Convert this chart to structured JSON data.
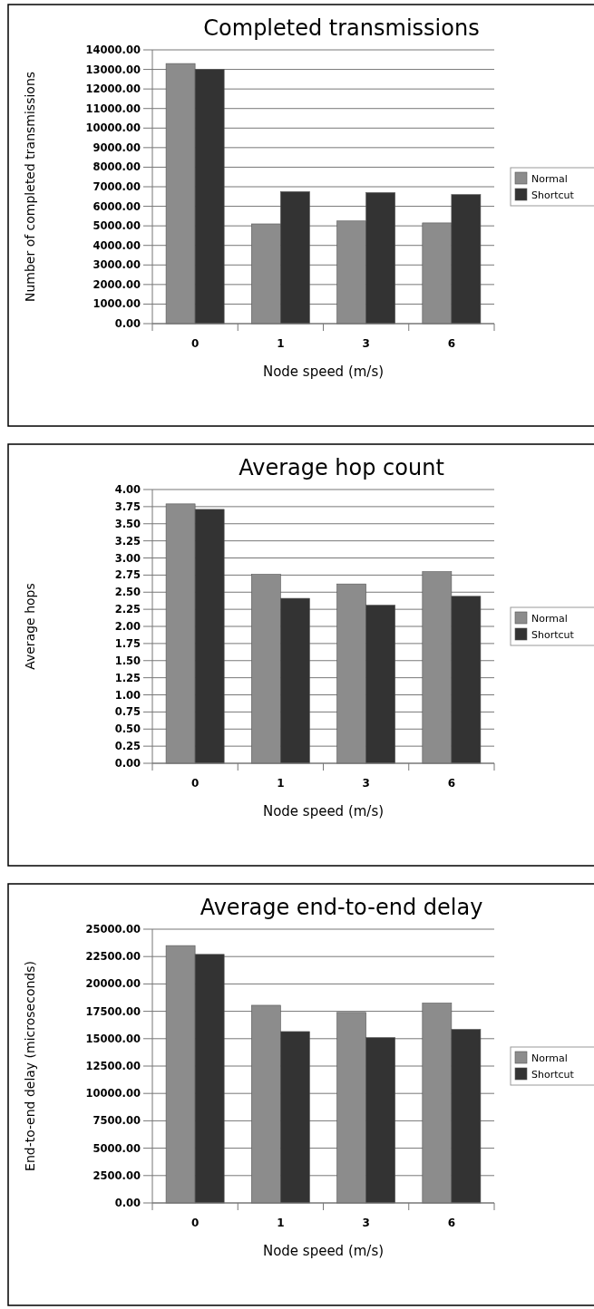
{
  "chart_data": [
    {
      "type": "bar",
      "title": "Completed transmissions",
      "xlabel": "Node speed (m/s)",
      "ylabel": "Number of completed transmissions",
      "categories": [
        "0",
        "1",
        "3",
        "6"
      ],
      "series": [
        {
          "name": "Normal",
          "color": "#8c8c8c",
          "values": [
            13300,
            5100,
            5250,
            5150
          ]
        },
        {
          "name": "Shortcut",
          "color": "#333333",
          "values": [
            13000,
            6750,
            6700,
            6600
          ]
        }
      ],
      "ylim": [
        0,
        14000
      ],
      "yticks": [
        {
          "value": 0,
          "label": "0.00"
        },
        {
          "value": 1000,
          "label": "1000.00"
        },
        {
          "value": 2000,
          "label": "2000.00"
        },
        {
          "value": 3000,
          "label": "3000.00"
        },
        {
          "value": 4000,
          "label": "4000.00"
        },
        {
          "value": 5000,
          "label": "5000.00"
        },
        {
          "value": 6000,
          "label": "6000.00"
        },
        {
          "value": 7000,
          "label": "7000.00"
        },
        {
          "value": 8000,
          "label": "8000.00"
        },
        {
          "value": 9000,
          "label": "9000.00"
        },
        {
          "value": 10000,
          "label": "10000.00"
        },
        {
          "value": 11000,
          "label": "11000.00"
        },
        {
          "value": 12000,
          "label": "12000.00"
        },
        {
          "value": 13000,
          "label": "13000.00"
        },
        {
          "value": 14000,
          "label": "14000.00"
        }
      ],
      "grid": "y",
      "legend": "right"
    },
    {
      "type": "bar",
      "title": "Average hop count",
      "xlabel": "Node speed (m/s)",
      "ylabel": "Average hops",
      "categories": [
        "0",
        "1",
        "3",
        "6"
      ],
      "series": [
        {
          "name": "Normal",
          "color": "#8c8c8c",
          "values": [
            3.79,
            2.76,
            2.62,
            2.8
          ]
        },
        {
          "name": "Shortcut",
          "color": "#333333",
          "values": [
            3.71,
            2.41,
            2.31,
            2.44
          ]
        }
      ],
      "ylim": [
        0,
        4
      ],
      "yticks": [
        {
          "value": 0,
          "label": "0.00"
        },
        {
          "value": 0.25,
          "label": "0.25"
        },
        {
          "value": 0.5,
          "label": "0.50"
        },
        {
          "value": 0.75,
          "label": "0.75"
        },
        {
          "value": 1,
          "label": "1.00"
        },
        {
          "value": 1.25,
          "label": "1.25"
        },
        {
          "value": 1.5,
          "label": "1.50"
        },
        {
          "value": 1.75,
          "label": "1.75"
        },
        {
          "value": 2,
          "label": "2.00"
        },
        {
          "value": 2.25,
          "label": "2.25"
        },
        {
          "value": 2.5,
          "label": "2.50"
        },
        {
          "value": 2.75,
          "label": "2.75"
        },
        {
          "value": 3,
          "label": "3.00"
        },
        {
          "value": 3.25,
          "label": "3.25"
        },
        {
          "value": 3.5,
          "label": "3.50"
        },
        {
          "value": 3.75,
          "label": "3.75"
        },
        {
          "value": 4,
          "label": "4.00"
        }
      ],
      "grid": "y",
      "legend": "right"
    },
    {
      "type": "bar",
      "title": "Average end-to-end delay",
      "xlabel": "Node speed (m/s)",
      "ylabel": "End-to-end delay (microseconds)",
      "categories": [
        "0",
        "1",
        "3",
        "6"
      ],
      "series": [
        {
          "name": "Normal",
          "color": "#8c8c8c",
          "values": [
            23500,
            18050,
            17400,
            18250
          ]
        },
        {
          "name": "Shortcut",
          "color": "#333333",
          "values": [
            22700,
            15650,
            15100,
            15850
          ]
        }
      ],
      "ylim": [
        0,
        25000
      ],
      "yticks": [
        {
          "value": 0,
          "label": "0.00"
        },
        {
          "value": 2500,
          "label": "2500.00"
        },
        {
          "value": 5000,
          "label": "5000.00"
        },
        {
          "value": 7500,
          "label": "7500.00"
        },
        {
          "value": 10000,
          "label": "10000.00"
        },
        {
          "value": 12500,
          "label": "12500.00"
        },
        {
          "value": 15000,
          "label": "15000.00"
        },
        {
          "value": 17500,
          "label": "17500.00"
        },
        {
          "value": 20000,
          "label": "20000.00"
        },
        {
          "value": 22500,
          "label": "22500.00"
        },
        {
          "value": 25000,
          "label": "25000.00"
        }
      ],
      "grid": "y",
      "legend": "right"
    }
  ]
}
